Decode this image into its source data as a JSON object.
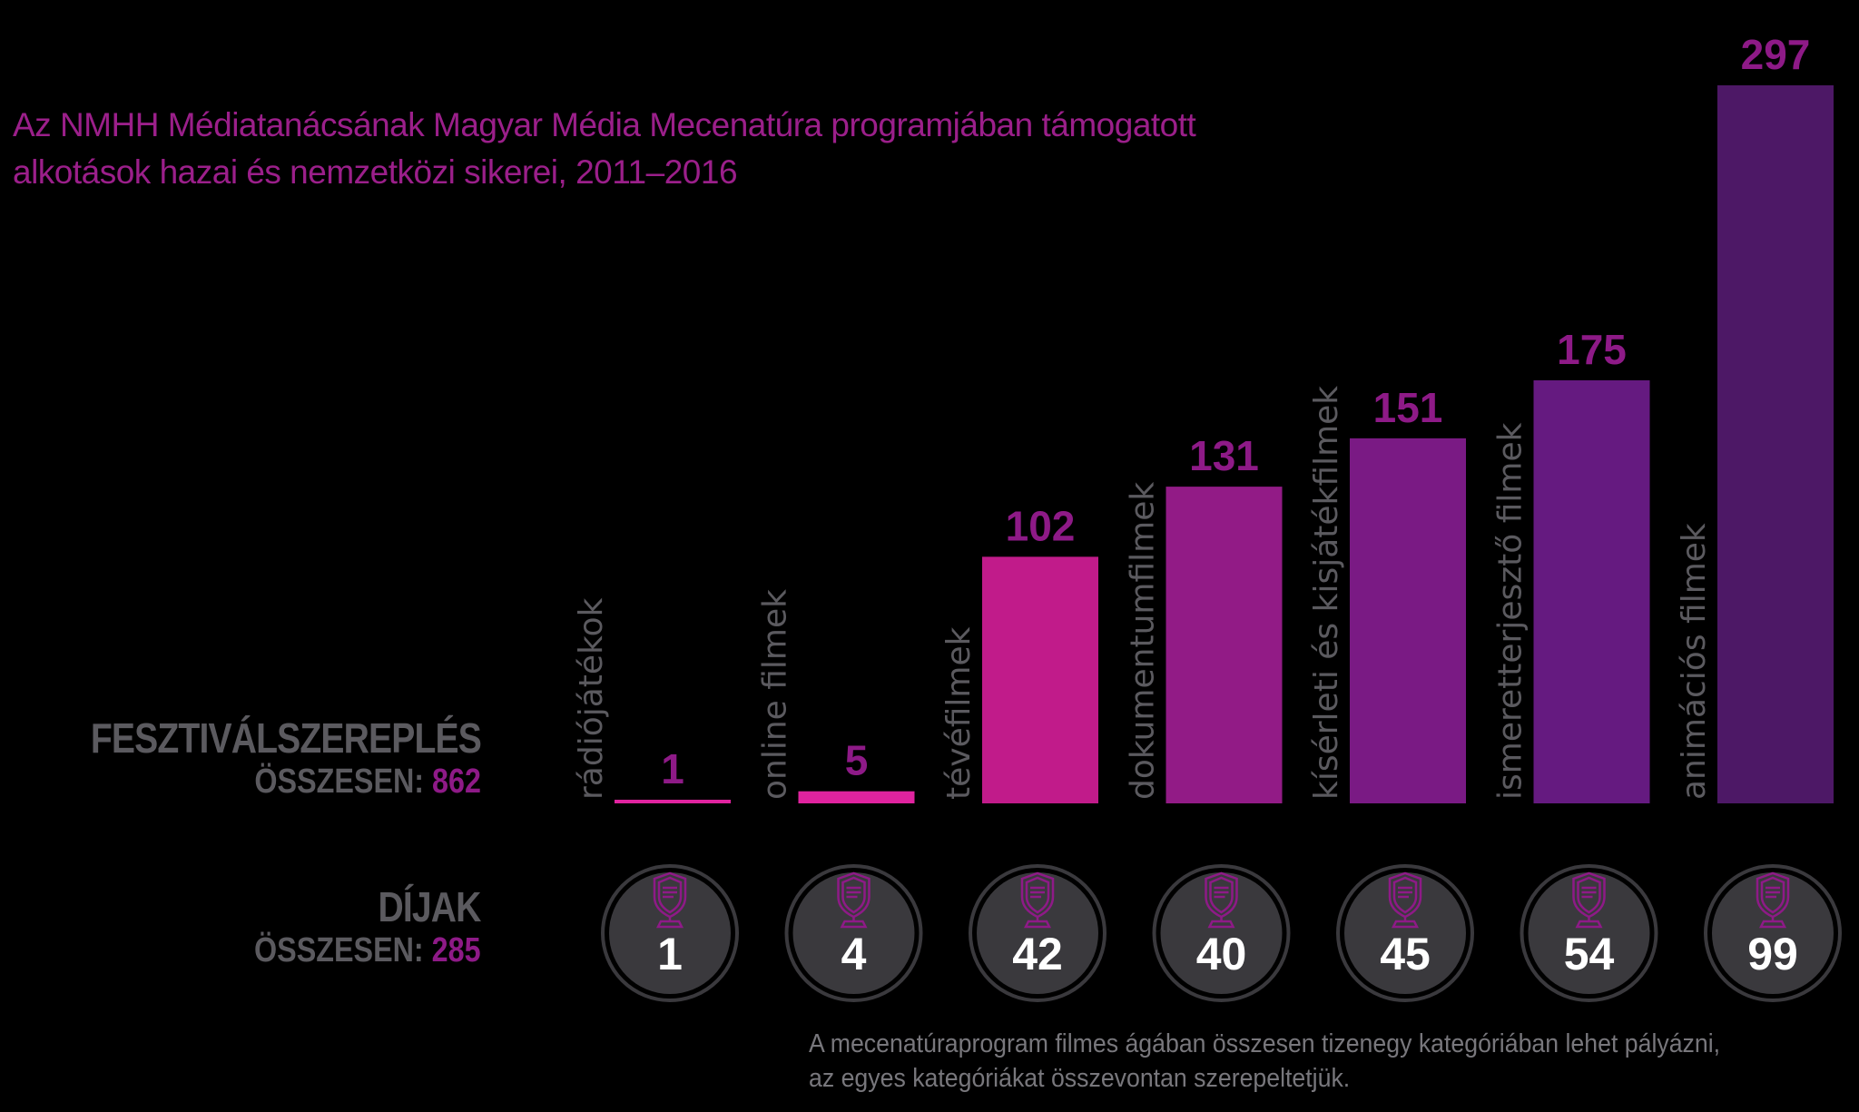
{
  "chart_data": {
    "type": "bar",
    "title": "Az NMHH Médiatanácsának Magyar Média Mecenatúra programjában támogatott alkotások hazai és nemzetközi sikerei, 2011–2016",
    "title_lines": [
      "Az NMHH Médiatanácsának Magyar Média Mecenatúra programjában támogatott",
      "alkotások hazai és nemzetközi sikerei, 2011–2016"
    ],
    "categories": [
      "rádiójátékok",
      "online filmek",
      "tévéfilmek",
      "dokumentumfilmek",
      "kísérleti és kisjátékfilmek",
      "ismeretterjesztő filmek",
      "animációs filmek"
    ],
    "series": [
      {
        "name": "FESZTIVÁLSZEREPLÉS",
        "values": [
          1,
          5,
          102,
          131,
          151,
          175,
          297
        ]
      },
      {
        "name": "DÍJAK",
        "values": [
          1,
          4,
          42,
          40,
          45,
          54,
          99
        ]
      }
    ],
    "bar_colors": [
      "#e0239f",
      "#e0239f",
      "#c11b8a",
      "#921b86",
      "#7a1a84",
      "#651a80",
      "#4d1866"
    ],
    "ylim": [
      0,
      297
    ],
    "grid": false,
    "legend": "none"
  },
  "side": {
    "festival_label": "FESZTIVÁLSZEREPLÉS",
    "festival_total_label": "ÖSSZESEN:",
    "festival_total": "862",
    "awards_label": "DÍJAK",
    "awards_total_label": "ÖSSZESEN:",
    "awards_total": "285"
  },
  "footnote": [
    "A mecenatúraprogram filmes ágában összesen tizenegy kategóriában lehet pályázni,",
    "az egyes kategóriákat összevontan szerepeltetjük."
  ],
  "colors": {
    "background": "#000000",
    "title": "#9b1f8a",
    "value_label": "#8e1a87",
    "category_label": "#5b5a5f",
    "circle": "#3a393d",
    "award_icon": "#8e1a87"
  },
  "icons": {
    "award": "trophy-shield-icon"
  }
}
